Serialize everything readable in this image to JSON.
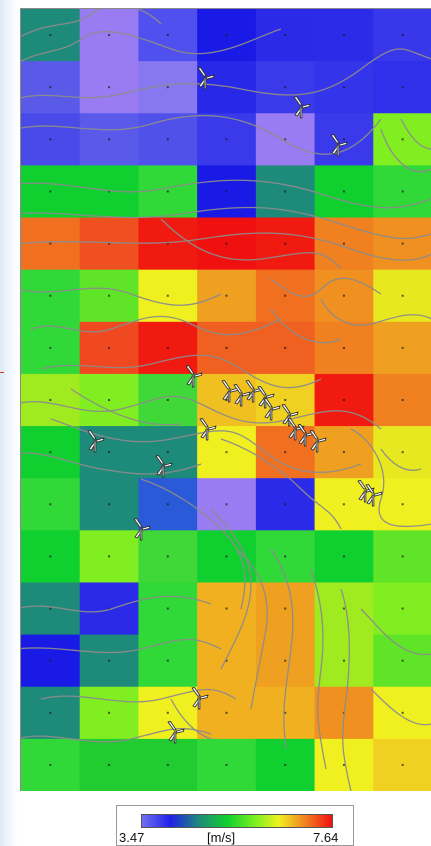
{
  "map": {
    "color_scale": [
      [
        0.0,
        "#7070f0"
      ],
      [
        0.15,
        "#2020e8"
      ],
      [
        0.3,
        "#1e8a7a"
      ],
      [
        0.45,
        "#10d030"
      ],
      [
        0.6,
        "#80f020"
      ],
      [
        0.72,
        "#f0f020"
      ],
      [
        0.86,
        "#f08020"
      ],
      [
        1.0,
        "#f01010"
      ]
    ],
    "grid_colors": [
      [
        "#1e8a7a",
        "#9a7cf2",
        "#5050ee",
        "#1a1ae6",
        "#2a2ae8",
        "#2c2ce8",
        "#3838ea"
      ],
      [
        "#5a5ae8",
        "#9a7cf2",
        "#8878f0",
        "#2828e8",
        "#3a3aea",
        "#3434ea",
        "#3030ea"
      ],
      [
        "#4a4ae8",
        "#5a5aea",
        "#5050ea",
        "#3a3aea",
        "#9a7cf2",
        "#3a3aea",
        "#80ee20"
      ],
      [
        "#10d030",
        "#10d030",
        "#30d838",
        "#1a1ae6",
        "#1e8a7a",
        "#10d030",
        "#30d838"
      ],
      [
        "#f07020",
        "#f05020",
        "#f01a10",
        "#f01010",
        "#f01a10",
        "#f08020",
        "#f09020"
      ],
      [
        "#30d838",
        "#60e428",
        "#f0f020",
        "#f0a020",
        "#f07020",
        "#f09020",
        "#e8e820"
      ],
      [
        "#30d838",
        "#f04820",
        "#f01a10",
        "#f06020",
        "#f06020",
        "#f08020",
        "#f0a020"
      ],
      [
        "#a0ea20",
        "#80ee20",
        "#40d838",
        "#f0c020",
        "#f0d020",
        "#f01a10",
        "#f08020"
      ],
      [
        "#10d030",
        "#1e8a7a",
        "#1e8a7a",
        "#f0f020",
        "#f07020",
        "#f0a020",
        "#e8e820"
      ],
      [
        "#30d838",
        "#1e8a7a",
        "#2a5ad8",
        "#9a7cf2",
        "#2a2ae8",
        "#f0f020",
        "#f0f020"
      ],
      [
        "#10d030",
        "#80ee20",
        "#40d838",
        "#10d030",
        "#30d838",
        "#10d030",
        "#60e428"
      ],
      [
        "#1e8a7a",
        "#2a2ae8",
        "#30d838",
        "#f0b020",
        "#f0a020",
        "#a0ea20",
        "#80ee20"
      ],
      [
        "#1a1ae6",
        "#1e8a7a",
        "#30d838",
        "#f0b020",
        "#f0a020",
        "#a0ea20",
        "#60e428"
      ],
      [
        "#1e8a7a",
        "#80ee20",
        "#f0f020",
        "#f0b020",
        "#f0b020",
        "#f09020",
        "#f0f020"
      ],
      [
        "#30d838",
        "#20cc30",
        "#20cc30",
        "#30d838",
        "#10d030",
        "#f0f020",
        "#f0d020"
      ]
    ]
  },
  "legend": {
    "min_label": "3.47",
    "unit_label": "[m/s]",
    "max_label": "7.64"
  }
}
